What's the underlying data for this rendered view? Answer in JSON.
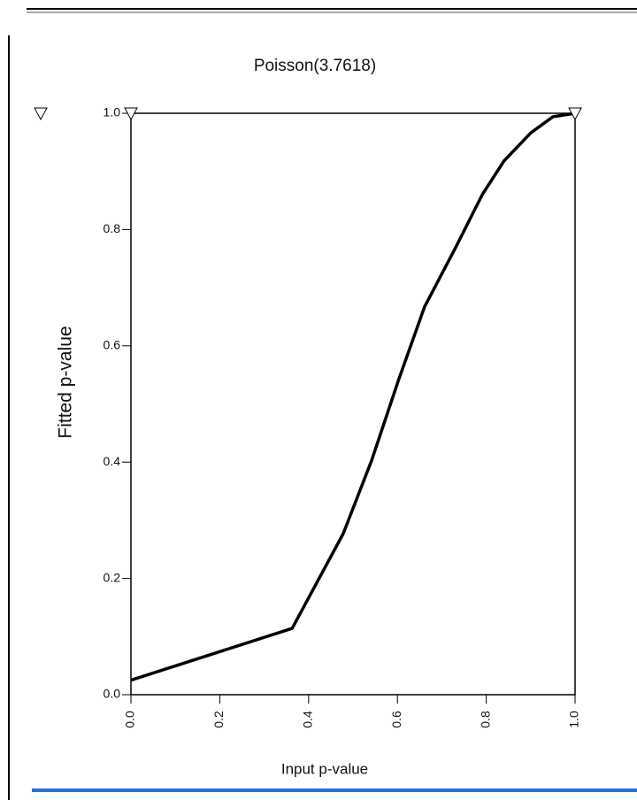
{
  "chart_data": {
    "type": "line",
    "title": "Poisson(3.7618)",
    "x_label": "Input p-value",
    "y_label": "Fitted p-value",
    "x": [
      0,
      0.363,
      0.478,
      0.542,
      0.602,
      0.661,
      0.731,
      0.791,
      0.84,
      0.9,
      0.95,
      1.0
    ],
    "series": [
      {
        "color": "#000000",
        "values": [
          0.025,
          0.114,
          0.277,
          0.403,
          0.54,
          0.667,
          0.769,
          0.86,
          0.918,
          0.966,
          0.994,
          1.0
        ]
      }
    ],
    "xlim": [
      0,
      1
    ],
    "ylim": [
      0,
      1
    ],
    "xticks": [
      {
        "value": 0,
        "label": "0.0"
      },
      0.2,
      0.4,
      0.6,
      0.8,
      {
        "value": 1,
        "label": "1.0"
      }
    ],
    "yticks": [
      {
        "value": 0,
        "label": "0.0"
      },
      0.2,
      0.4,
      0.6,
      0.8,
      {
        "value": 1,
        "label": "1.0"
      }
    ],
    "grid": false
  }
}
